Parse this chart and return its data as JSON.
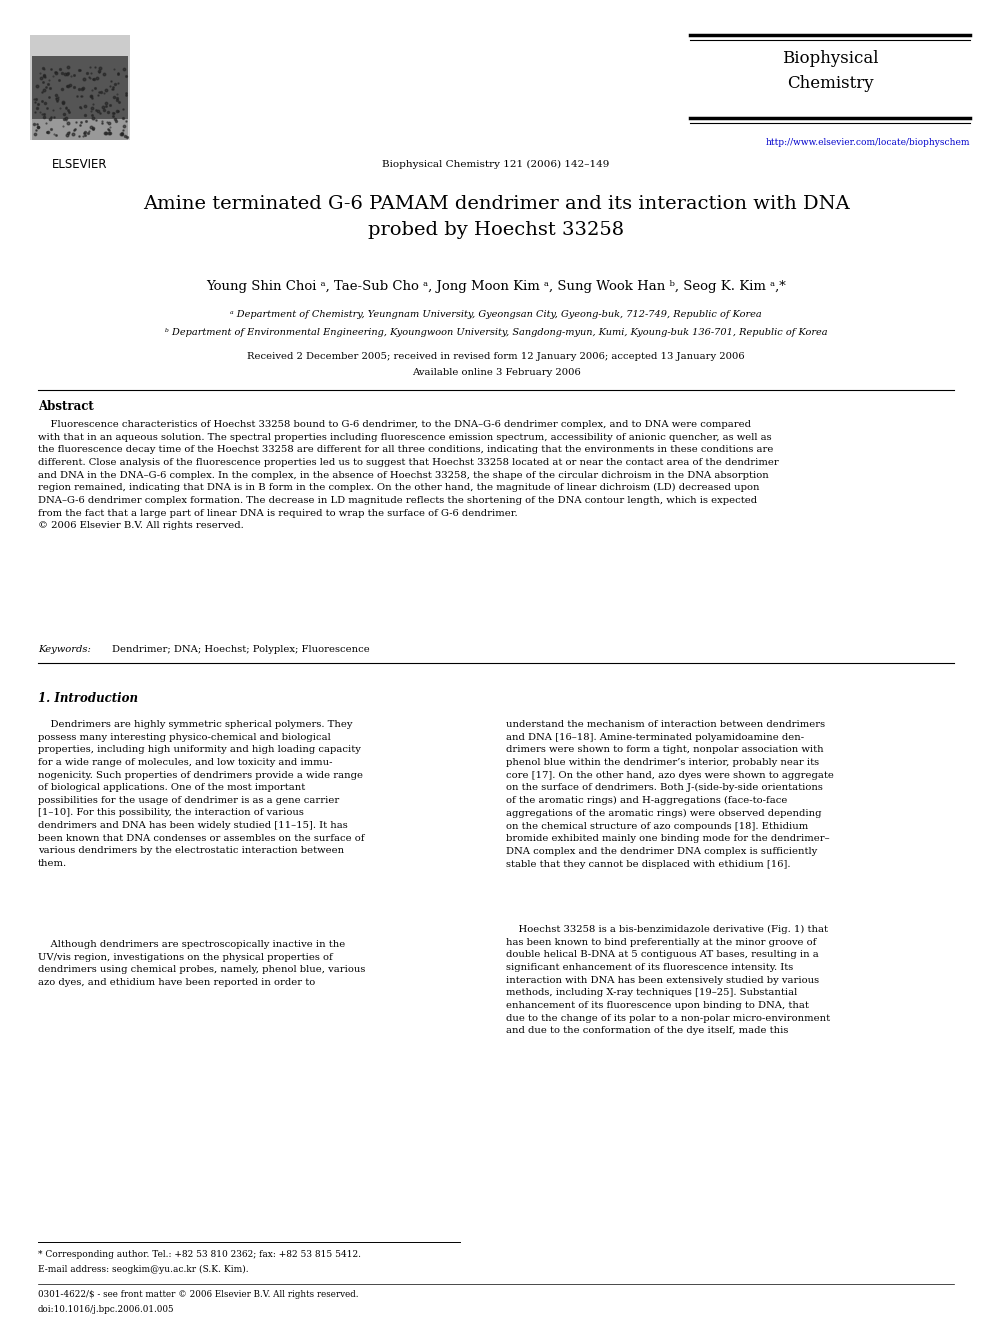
{
  "bg_color": "#ffffff",
  "page_width": 9.92,
  "page_height": 13.23,
  "header": {
    "elsevier_text": "ELSEVIER",
    "journal_name": "Biophysical\nChemistry",
    "journal_info": "Biophysical Chemistry 121 (2006) 142–149",
    "journal_url": "http://www.elsevier.com/locate/biophyschem"
  },
  "title": "Amine terminated G-6 PAMAM dendrimer and its interaction with DNA\nprobed by Hoechst 33258",
  "authors": "Young Shin Choi ᵃ, Tae-Sub Cho ᵃ, Jong Moon Kim ᵃ, Sung Wook Han ᵇ, Seog K. Kim ᵃ,*",
  "affil_a": "ᵃ Department of Chemistry, Yeungnam University, Gyeongsan City, Gyeong-buk, 712-749, Republic of Korea",
  "affil_b": "ᵇ Department of Environmental Engineering, Kyoungwoon University, Sangdong-myun, Kumi, Kyoung-buk 136-701, Republic of Korea",
  "received": "Received 2 December 2005; received in revised form 12 January 2006; accepted 13 January 2006",
  "available": "Available online 3 February 2006",
  "abstract_heading": "Abstract",
  "abstract_text": "    Fluorescence characteristics of Hoechst 33258 bound to G-6 dendrimer, to the DNA–G-6 dendrimer complex, and to DNA were compared\nwith that in an aqueous solution. The spectral properties including fluorescence emission spectrum, accessibility of anionic quencher, as well as\nthe fluorescence decay time of the Hoechst 33258 are different for all three conditions, indicating that the environments in these conditions are\ndifferent. Close analysis of the fluorescence properties led us to suggest that Hoechst 33258 located at or near the contact area of the dendrimer\nand DNA in the DNA–G-6 complex. In the complex, in the absence of Hoechst 33258, the shape of the circular dichroism in the DNA absorption\nregion remained, indicating that DNA is in B form in the complex. On the other hand, the magnitude of linear dichroism (LD) decreased upon\nDNA–G-6 dendrimer complex formation. The decrease in LD magnitude reflects the shortening of the DNA contour length, which is expected\nfrom the fact that a large part of linear DNA is required to wrap the surface of G-6 dendrimer.\n© 2006 Elsevier B.V. All rights reserved.",
  "keywords_label": "Keywords:",
  "keywords_text": "Dendrimer; DNA; Hoechst; Polyplex; Fluorescence",
  "section1_heading": "1. Introduction",
  "intro_col1_para1": "    Dendrimers are highly symmetric spherical polymers. They\npossess many interesting physico-chemical and biological\nproperties, including high uniformity and high loading capacity\nfor a wide range of molecules, and low toxicity and immu-\nnogenicity. Such properties of dendrimers provide a wide range\nof biological applications. One of the most important\npossibilities for the usage of dendrimer is as a gene carrier\n[1–10]. For this possibility, the interaction of various\ndendrimers and DNA has been widely studied [11–15]. It has\nbeen known that DNA condenses or assembles on the surface of\nvarious dendrimers by the electrostatic interaction between\nthem.",
  "intro_col1_para2": "    Although dendrimers are spectroscopically inactive in the\nUV/vis region, investigations on the physical properties of\ndendrimers using chemical probes, namely, phenol blue, various\nazo dyes, and ethidium have been reported in order to",
  "intro_col2_para1": "understand the mechanism of interaction between dendrimers\nand DNA [16–18]. Amine-terminated polyamidoamine den-\ndrimers were shown to form a tight, nonpolar association with\nphenol blue within the dendrimer’s interior, probably near its\ncore [17]. On the other hand, azo dyes were shown to aggregate\non the surface of dendrimers. Both J-(side-by-side orientations\nof the aromatic rings) and H-aggregations (face-to-face\naggregations of the aromatic rings) were observed depending\non the chemical structure of azo compounds [18]. Ethidium\nbromide exhibited mainly one binding mode for the dendrimer–\nDNA complex and the dendrimer DNA complex is sufficiently\nstable that they cannot be displaced with ethidium [16].",
  "intro_col2_para2": "    Hoechst 33258 is a bis-benzimidazole derivative (Fig. 1) that\nhas been known to bind preferentially at the minor groove of\ndouble helical B-DNA at 5 contiguous AT bases, resulting in a\nsignificant enhancement of its fluorescence intensity. Its\ninteraction with DNA has been extensively studied by various\nmethods, including X-ray techniques [19–25]. Substantial\nenhancement of its fluorescence upon binding to DNA, that\ndue to the change of its polar to a non-polar micro-environment\nand due to the conformation of the dye itself, made this",
  "footnote_star": "* Corresponding author. Tel.: +82 53 810 2362; fax: +82 53 815 5412.",
  "footnote_email": "E-mail address: seogkim@yu.ac.kr (S.K. Kim).",
  "footer_issn": "0301-4622/$ - see front matter © 2006 Elsevier B.V. All rights reserved.",
  "footer_doi": "doi:10.1016/j.bpc.2006.01.005"
}
